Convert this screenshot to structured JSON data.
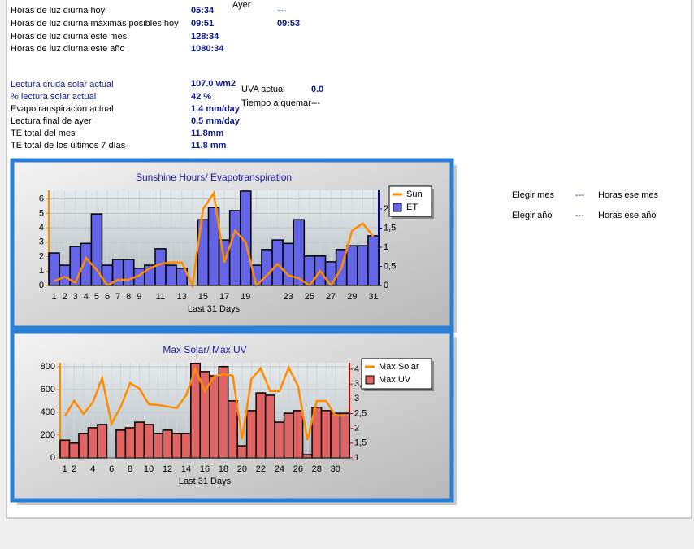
{
  "info": {
    "yesterday_header": "Ayer",
    "rows": [
      {
        "label": "Horas de luz diurna hoy",
        "value": "05:34",
        "yesterday": "---"
      },
      {
        "label": "Horas de luz diurna máximas posibles hoy",
        "value": "09:51",
        "yesterday": "09:53"
      },
      {
        "label": "Horas de luz diurna este mes",
        "value": "128:34"
      },
      {
        "label": "Horas de luz diurna este año",
        "value": "1080:34"
      }
    ]
  },
  "readings": [
    {
      "label": "Lectura cruda solar actual",
      "value": "107.0 wm2"
    },
    {
      "label": "% lectura solar actual",
      "value": "42 %"
    },
    {
      "label": "Evapotranspiración actual",
      "value": "1.4 mm/day"
    },
    {
      "label": "Lectura final de ayer",
      "value": "0.5 mm/day"
    },
    {
      "label": "TE total del mes",
      "value": "11.8mm"
    },
    {
      "label": "TE total de los últimos 7 días",
      "value": "11.8 mm"
    }
  ],
  "uv": [
    {
      "label": "UVA actual",
      "value": "0.0"
    },
    {
      "label": "Tiempo a quemar",
      "value": "---"
    }
  ],
  "side": [
    {
      "label": "Elegir mes",
      "value": "---",
      "result": "Horas ese mes"
    },
    {
      "label": "Elegir año",
      "value": "---",
      "result": "Horas ese año"
    }
  ],
  "chart_data": [
    {
      "type": "combo",
      "title": "Sunshine Hours/ Evapotranspiration",
      "xlabel": "Last 31 Days",
      "categories": [
        "1",
        "2",
        "3",
        "4",
        "5",
        "6",
        "7",
        "8",
        "9",
        null,
        "11",
        null,
        "13",
        null,
        "15",
        null,
        "17",
        null,
        "19",
        null,
        null,
        null,
        "23",
        null,
        "25",
        null,
        "27",
        null,
        "29",
        null,
        "31"
      ],
      "ylim": [
        0,
        6.6
      ],
      "yticks": [
        0,
        1,
        2,
        3,
        4,
        5,
        6
      ],
      "y2lim": [
        0,
        2.49
      ],
      "y2ticks": [
        0,
        {
          "value": 0.5,
          "label": "0,5"
        },
        1,
        {
          "value": 1.5,
          "label": "1,5"
        },
        2
      ],
      "grid": true,
      "left_axis_color": "#ff8c00",
      "right_axis_color": "#0000c0",
      "series": [
        {
          "name": "ET",
          "type": "bar",
          "axis": "y2",
          "color": "#6464e6",
          "values": [
            0.85,
            0.53,
            1.02,
            1.1,
            1.87,
            0.53,
            0.68,
            0.68,
            0.45,
            0.53,
            0.96,
            0.53,
            0.45,
            0,
            1.72,
            2.04,
            1.19,
            1.96,
            2.47,
            0.53,
            0.94,
            1.19,
            1.1,
            1.72,
            0.77,
            0.77,
            0.62,
            0.94,
            1.04,
            1.04,
            1.3
          ]
        },
        {
          "name": "Sun",
          "type": "line",
          "axis": "y",
          "color": "#ff8c00",
          "values": [
            0.3,
            0.6,
            0.2,
            1.9,
            1.1,
            0,
            0.4,
            0.4,
            0.7,
            1.2,
            1.5,
            1.6,
            1.6,
            0,
            5.3,
            6.4,
            1.6,
            3.8,
            3.0,
            0,
            0.7,
            1.5,
            0.7,
            0.5,
            0,
            1.0,
            0,
            1.2,
            3.8,
            4.3,
            3.4
          ]
        }
      ],
      "legend_order": [
        1,
        0
      ]
    },
    {
      "type": "combo",
      "title": "Max Solar/ Max UV",
      "xlabel": "Last 31 Days",
      "categories": [
        "1",
        "2",
        null,
        "4",
        null,
        "6",
        null,
        "8",
        null,
        "10",
        null,
        "12",
        null,
        "14",
        null,
        "16",
        null,
        "18",
        null,
        "20",
        null,
        "22",
        null,
        "24",
        null,
        "26",
        null,
        "28",
        null,
        "30",
        null
      ],
      "ylim": [
        0,
        835
      ],
      "yticks": [
        0,
        200,
        400,
        600,
        800
      ],
      "y2lim": [
        1,
        4.22
      ],
      "y2ticks": [
        1,
        {
          "value": 1.5,
          "label": "1,5"
        },
        2,
        {
          "value": 2.5,
          "label": "2,5"
        },
        3,
        {
          "value": 3.5,
          "label": "3,5"
        },
        4
      ],
      "grid": true,
      "left_axis_color": "#ff8c00",
      "right_axis_color": "#c00000",
      "series": [
        {
          "name": "Max UV",
          "type": "bar",
          "axis": "y2",
          "color": "#e06464",
          "values": [
            1.6,
            1.5,
            1.83,
            2.02,
            2.13,
            1,
            1.94,
            2.02,
            2.21,
            2.13,
            1.83,
            1.94,
            1.83,
            1.83,
            4.2,
            3.92,
            3.78,
            4.09,
            2.93,
            1.41,
            2.6,
            3.2,
            3.12,
            2.21,
            2.51,
            2.6,
            1.11,
            2.71,
            2.6,
            2.51,
            2.51
          ]
        },
        {
          "name": "Max Solar",
          "type": "line",
          "axis": "y",
          "color": "#ff8c00",
          "values": [
            364,
            500,
            386,
            486,
            700,
            300,
            450,
            657,
            607,
            471,
            464,
            450,
            436,
            550,
            779,
            586,
            714,
            736,
            721,
            164,
            693,
            786,
            586,
            586,
            793,
            629,
            157,
            500,
            500,
            371,
            371
          ]
        }
      ],
      "legend_order": [
        1,
        0
      ]
    }
  ]
}
